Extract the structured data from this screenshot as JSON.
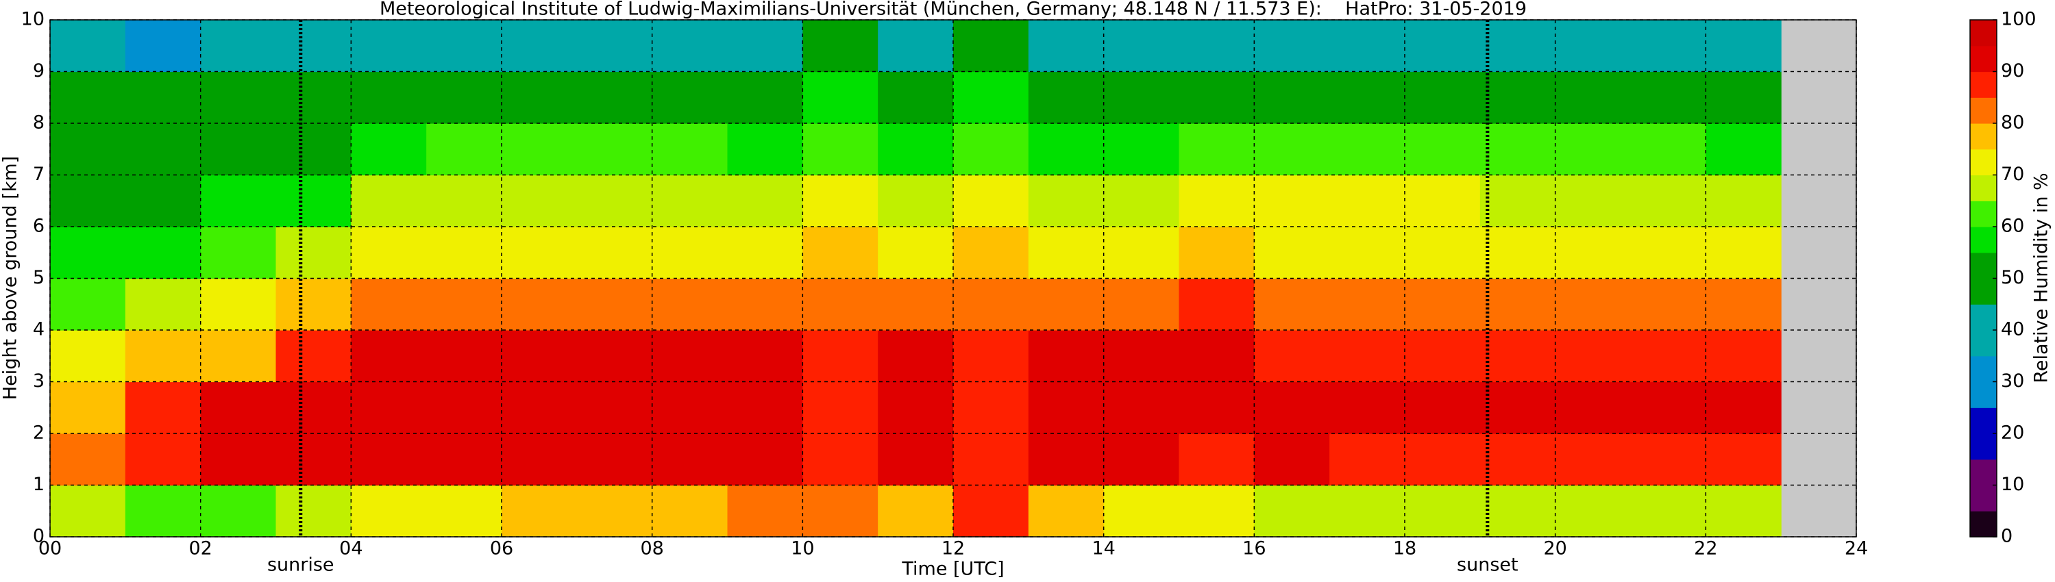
{
  "chart_data": {
    "type": "heatmap",
    "title": "Meteorological Institute of Ludwig-Maximilians-Universität (München, Germany; 48.148 N / 11.573 E):    HatPro: 31-05-2019",
    "x_label": "Time [UTC]",
    "y_label": "Height above ground [km]",
    "colorbar_label": "Relative Humidity in %",
    "xbins": [
      0,
      1,
      2,
      3,
      4,
      5,
      6,
      7,
      8,
      9,
      10,
      11,
      12,
      13,
      14,
      15,
      16,
      17,
      18,
      19,
      20,
      21,
      22,
      23,
      24
    ],
    "ybins": [
      0,
      1,
      2,
      3,
      4,
      5,
      6,
      7,
      8,
      9,
      10
    ],
    "values": [
      [
        65,
        62,
        62,
        66,
        72,
        74,
        76,
        77,
        78,
        80,
        82,
        78,
        85,
        76,
        74,
        70,
        68,
        68,
        66,
        65,
        66,
        66,
        68,
        null
      ],
      [
        80,
        88,
        90,
        91,
        92,
        92,
        92,
        92,
        92,
        93,
        88,
        92,
        88,
        92,
        92,
        88,
        90,
        86,
        86,
        86,
        86,
        86,
        86,
        null
      ],
      [
        78,
        88,
        90,
        90,
        92,
        92,
        92,
        92,
        92,
        92,
        88,
        92,
        88,
        92,
        92,
        90,
        90,
        90,
        90,
        90,
        90,
        90,
        90,
        null
      ],
      [
        72,
        76,
        78,
        86,
        90,
        90,
        90,
        90,
        90,
        90,
        86,
        90,
        86,
        90,
        90,
        90,
        88,
        88,
        88,
        88,
        88,
        88,
        88,
        null
      ],
      [
        64,
        68,
        70,
        76,
        82,
        82,
        82,
        82,
        80,
        80,
        82,
        80,
        82,
        80,
        80,
        86,
        84,
        84,
        84,
        84,
        84,
        84,
        84,
        null
      ],
      [
        56,
        58,
        62,
        66,
        74,
        74,
        74,
        74,
        72,
        72,
        78,
        72,
        78,
        72,
        72,
        76,
        74,
        74,
        74,
        74,
        74,
        74,
        74,
        null
      ],
      [
        52,
        54,
        56,
        58,
        66,
        68,
        68,
        68,
        66,
        66,
        72,
        66,
        72,
        66,
        66,
        70,
        70,
        70,
        70,
        68,
        68,
        68,
        66,
        null
      ],
      [
        50,
        50,
        50,
        52,
        58,
        60,
        60,
        60,
        60,
        58,
        62,
        58,
        62,
        58,
        58,
        60,
        62,
        62,
        60,
        60,
        60,
        60,
        58,
        null
      ],
      [
        48,
        48,
        48,
        48,
        52,
        52,
        54,
        54,
        52,
        52,
        56,
        52,
        56,
        52,
        50,
        52,
        52,
        52,
        52,
        52,
        52,
        52,
        50,
        null
      ],
      [
        36,
        34,
        36,
        40,
        44,
        44,
        44,
        44,
        44,
        44,
        46,
        44,
        46,
        44,
        42,
        44,
        44,
        44,
        44,
        44,
        44,
        44,
        44,
        null
      ]
    ],
    "xlim": [
      0,
      24
    ],
    "xticks": [
      {
        "value": 0,
        "label": "00"
      },
      {
        "value": 2,
        "label": "02"
      },
      {
        "value": 4,
        "label": "04"
      },
      {
        "value": 6,
        "label": "06"
      },
      {
        "value": 8,
        "label": "08"
      },
      10,
      12,
      14,
      16,
      18,
      20,
      22,
      24
    ],
    "ylim": [
      0,
      10
    ],
    "yticks": [
      0,
      1,
      2,
      3,
      4,
      5,
      6,
      7,
      8,
      9,
      10
    ],
    "grid": true,
    "missing_color": "#c8c8c8",
    "colorbar": {
      "lim": [
        0,
        100
      ],
      "ticks": [
        0,
        10,
        20,
        30,
        40,
        50,
        60,
        70,
        80,
        90,
        100
      ],
      "levels": [
        0,
        5,
        10,
        15,
        20,
        25,
        30,
        35,
        40,
        45,
        50,
        55,
        60,
        65,
        70,
        75,
        80,
        85,
        90,
        95,
        100
      ],
      "colors": [
        "#1a0018",
        "#6a006a",
        "#6a006a",
        "#0000c0",
        "#0000c0",
        "#0090d0",
        "#0090d0",
        "#00a8a8",
        "#00a8a8",
        "#00a000",
        "#00a000",
        "#00e000",
        "#40f000",
        "#c0f000",
        "#f0f000",
        "#ffc000",
        "#ff7000",
        "#ff2000",
        "#e00000",
        "#d00000"
      ]
    },
    "annotations": [
      {
        "label": "sunrise",
        "x": 3.33
      },
      {
        "label": "sunset",
        "x": 19.1
      }
    ]
  }
}
